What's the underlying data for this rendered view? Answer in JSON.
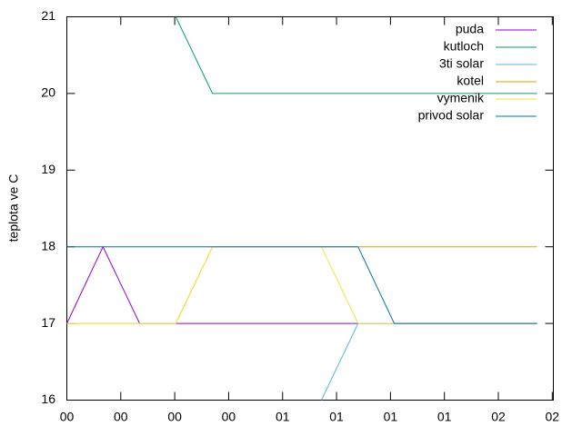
{
  "chart_data": {
    "type": "line",
    "ylabel": "teplota ve C",
    "x": [
      0,
      0.67,
      1.35,
      2.02,
      2.7,
      3.37,
      4.05,
      4.72,
      5.4,
      6.07,
      8.72
    ],
    "xlim": [
      0,
      9.02
    ],
    "xticks": [
      {
        "value": 0,
        "label": "00"
      },
      {
        "value": 1,
        "label": "00"
      },
      {
        "value": 2,
        "label": "00"
      },
      {
        "value": 3,
        "label": "00"
      },
      {
        "value": 4,
        "label": "01"
      },
      {
        "value": 5,
        "label": "01"
      },
      {
        "value": 6,
        "label": "01"
      },
      {
        "value": 7,
        "label": "01"
      },
      {
        "value": 8,
        "label": "02"
      },
      {
        "value": 9,
        "label": "02"
      }
    ],
    "ylim": [
      16,
      21
    ],
    "yticks": [
      16,
      17,
      18,
      19,
      20,
      21
    ],
    "legend": "top-right",
    "series": [
      {
        "name": "puda",
        "color": "#9400d3",
        "values": [
          17,
          18,
          17,
          17,
          17,
          17,
          17,
          17,
          17,
          17,
          17
        ]
      },
      {
        "name": "kutloch",
        "color": "#009e73",
        "values": [
          null,
          null,
          null,
          21,
          20,
          20,
          20,
          20,
          20,
          20,
          20
        ]
      },
      {
        "name": "3ti solar",
        "color": "#56b4e9",
        "values": [
          null,
          null,
          null,
          null,
          null,
          null,
          null,
          16,
          17,
          17,
          17
        ]
      },
      {
        "name": "kotel",
        "color": "#e69f00",
        "values": [
          17,
          17,
          17,
          17,
          18,
          18,
          18,
          18,
          18,
          18,
          18
        ]
      },
      {
        "name": "vymenik",
        "color": "#f0e442",
        "values": [
          17,
          17,
          17,
          17,
          18,
          18,
          18,
          18,
          17,
          17,
          17
        ]
      },
      {
        "name": "privod solar",
        "color": "#0072b2",
        "values": [
          18,
          18,
          18,
          18,
          18,
          18,
          18,
          18,
          18,
          17,
          17
        ]
      }
    ]
  }
}
